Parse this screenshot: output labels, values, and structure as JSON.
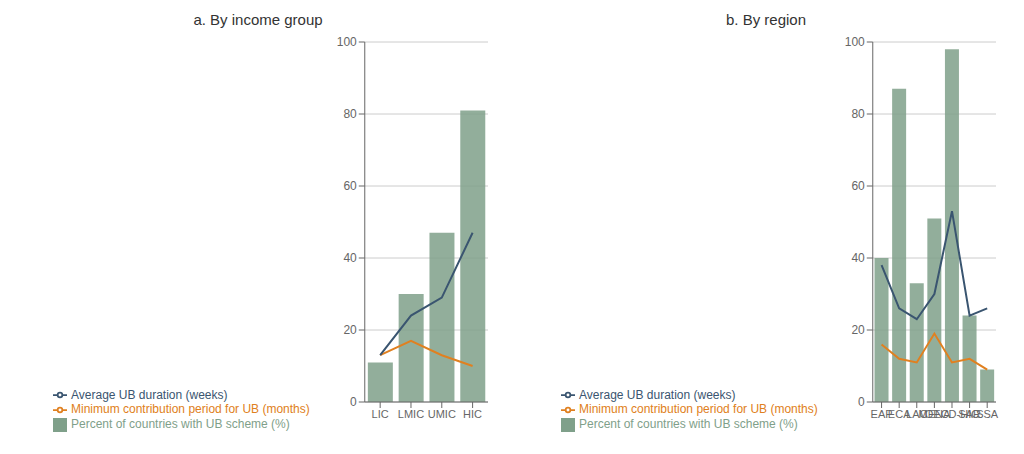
{
  "chart_data": [
    {
      "type": "bar",
      "title": "a. By income group",
      "categories": [
        "LIC",
        "LMIC",
        "UMIC",
        "HIC"
      ],
      "series": [
        {
          "name": "Percent of countries with UB scheme (%)",
          "type": "bar",
          "color": "#7fa08a",
          "values": [
            11,
            30,
            47,
            81
          ]
        },
        {
          "name": "Minimum contribution period for UB (months)",
          "type": "line",
          "color": "#e08020",
          "values": [
            13,
            17,
            13,
            10
          ]
        },
        {
          "name": "Average UB duration (weeks)",
          "type": "line",
          "color": "#3a5570",
          "values": [
            13,
            24,
            29,
            47
          ]
        }
      ],
      "ylim": [
        0,
        100
      ],
      "yticks": [
        0,
        20,
        40,
        60,
        80,
        100
      ],
      "grid": true,
      "legend": "bottom"
    },
    {
      "type": "bar",
      "title": "b. By region",
      "categories": [
        "EAP",
        "ECA",
        "LAC",
        "MENA",
        "OECD-HIC",
        "SAR",
        "SSA"
      ],
      "series": [
        {
          "name": "Percent of countries with UB scheme (%)",
          "type": "bar",
          "color": "#7fa08a",
          "values": [
            40,
            87,
            33,
            51,
            98,
            24,
            9
          ]
        },
        {
          "name": "Minimum contribution period for UB (months)",
          "type": "line",
          "color": "#e08020",
          "values": [
            16,
            12,
            11,
            19,
            11,
            12,
            9
          ]
        },
        {
          "name": "Average UB duration (weeks)",
          "type": "line",
          "color": "#3a5570",
          "values": [
            38,
            26,
            23,
            30,
            53,
            24,
            26
          ]
        }
      ],
      "ylim": [
        0,
        100
      ],
      "yticks": [
        0,
        20,
        40,
        60,
        80,
        100
      ],
      "grid": true,
      "legend": "bottom"
    }
  ]
}
